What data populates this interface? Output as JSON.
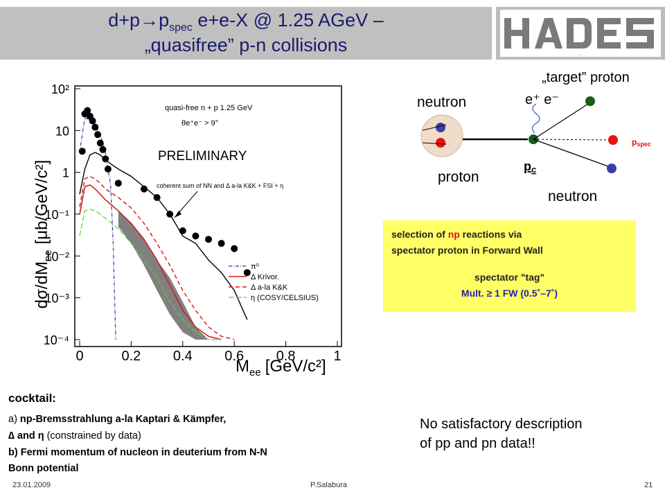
{
  "slide": {
    "title_line1": "d+p→p",
    "title_line1_sub": "spec",
    "title_line1_rest": " e+e-X  @ 1.25 AGeV  –",
    "title_line2": "„quasifree”  p-n collisions",
    "logo_text": "HADES"
  },
  "diagram": {
    "target_proton": "„target” proton",
    "neutron_top": "neutron",
    "ee": "e⁺ e⁻",
    "proton": "proton",
    "pc": "p",
    "pc_sub": "c",
    "pspec": "p",
    "pspec_sub": "spec",
    "neutron_bottom": "neutron"
  },
  "selection_box": {
    "line1_pre": "selection of ",
    "line1_np": "np",
    "line1_post": " reactions via",
    "line2": "spectator proton  in Forward Wall",
    "line3": "spectator \"tag\"",
    "line4": "Mult.  ≥ 1 FW (0.5˚–7˚)"
  },
  "cocktail": {
    "heading": "cocktail:",
    "a_prefix": "a) ",
    "a_text": "np-Bremsstrahlung a-la Kaptari & Kämpfer,",
    "delta_eta": "∆  and  η",
    "delta_eta_rest": " (constrained by data)",
    "b_text": "b) Fermi momentum of nucleon in deuterium from N-N",
    "b_text2": "Bonn potential"
  },
  "conclusion": {
    "line1": "No satisfactory description",
    "line2": "of pp and pn data!!"
  },
  "footer": {
    "date": "23.01.2009",
    "author": "P.Salabura",
    "page": "21"
  },
  "chart_data": {
    "type": "line",
    "xlabel": "M",
    "xlabel_sub": "ee",
    "xlabel_units": "[GeV/c²]",
    "ylabel": "dσ/dM",
    "ylabel_sub": "ee",
    "ylabel_units": "[μb/GeV/c²]",
    "xlim": [
      0,
      1
    ],
    "ylim_log10": [
      -4,
      2
    ],
    "y_scale": "log",
    "x_ticks": [
      "0",
      "0.2",
      "0.4",
      "0.6",
      "0.8",
      "1"
    ],
    "y_ticks": [
      "10⁻⁴",
      "10⁻³",
      "10⁻²",
      "10⁻¹",
      "1",
      "10",
      "10²"
    ],
    "annotation_title": "quasi-free n + p  1.25 GeV",
    "annotation_cut": "θe⁺e⁻ > 9°",
    "annotation_label": "PRELIMINARY",
    "annotation_sum": "coherent sum of NN and Δ a-la K&K + FSI + η",
    "legend": [
      "π⁰",
      "Δ Krivor.",
      "Δ a-la K&K",
      "η (COSY/CELSIUS)"
    ],
    "legend_placement": "bottom-right",
    "series": [
      {
        "name": "data",
        "x": [
          0.01,
          0.02,
          0.03,
          0.04,
          0.05,
          0.06,
          0.07,
          0.08,
          0.09,
          0.1,
          0.11,
          0.15,
          0.25,
          0.3,
          0.35,
          0.4,
          0.45,
          0.5,
          0.55,
          0.6,
          0.65
        ],
        "y": [
          3.2,
          25,
          30,
          22,
          17,
          12,
          8,
          5,
          3.5,
          2.1,
          1.2,
          0.55,
          0.4,
          0.25,
          0.1,
          0.04,
          0.03,
          0.025,
          0.02,
          0.015,
          0.004
        ]
      },
      {
        "name": "coherent sum",
        "x": [
          0.0,
          0.02,
          0.04,
          0.06,
          0.08,
          0.1,
          0.12,
          0.15,
          0.2,
          0.25,
          0.3,
          0.35,
          0.4,
          0.45,
          0.5,
          0.55,
          0.6,
          0.65
        ],
        "y": [
          0.3,
          1.2,
          2.6,
          3.0,
          2.6,
          2.0,
          1.6,
          1.2,
          0.8,
          0.45,
          0.25,
          0.1,
          0.03,
          0.02,
          0.008,
          0.004,
          0.0015,
          0.0003
        ]
      },
      {
        "name": "π⁰",
        "x": [
          0.0,
          0.02,
          0.05,
          0.08,
          0.1,
          0.12,
          0.13,
          0.14
        ],
        "y": [
          3.0,
          20,
          17,
          8,
          3,
          0.5,
          0.02,
          0.0001
        ]
      },
      {
        "name": "Δ Krivor.",
        "x": [
          0.0,
          0.02,
          0.04,
          0.06,
          0.08,
          0.1,
          0.15,
          0.2,
          0.25,
          0.3,
          0.35,
          0.4,
          0.45,
          0.5,
          0.55
        ],
        "y": [
          0.1,
          0.45,
          0.5,
          0.4,
          0.3,
          0.22,
          0.12,
          0.06,
          0.025,
          0.008,
          0.002,
          0.0005,
          0.0002,
          0.00012,
          0.0001
        ]
      },
      {
        "name": "Δ a-la K&K",
        "x": [
          0.0,
          0.02,
          0.04,
          0.06,
          0.08,
          0.1,
          0.15,
          0.2,
          0.25,
          0.3,
          0.35,
          0.4,
          0.45,
          0.5,
          0.55,
          0.6
        ],
        "y": [
          0.15,
          0.7,
          0.8,
          0.7,
          0.55,
          0.4,
          0.25,
          0.14,
          0.06,
          0.02,
          0.006,
          0.0015,
          0.0005,
          0.0002,
          0.00012,
          0.0001
        ]
      },
      {
        "name": "η (COSY/CELSIUS)",
        "x": [
          0.0,
          0.02,
          0.04,
          0.06,
          0.08,
          0.1,
          0.15,
          0.2,
          0.25,
          0.3,
          0.35,
          0.4,
          0.45,
          0.5,
          0.55
        ],
        "y": [
          0.03,
          0.12,
          0.13,
          0.12,
          0.1,
          0.08,
          0.045,
          0.02,
          0.008,
          0.003,
          0.0008,
          0.0003,
          0.00015,
          0.0001,
          0.0001
        ]
      }
    ],
    "band": {
      "name": "band",
      "x": [
        0.15,
        0.2,
        0.25,
        0.3,
        0.35,
        0.4,
        0.45,
        0.5
      ],
      "y_low": [
        0.05,
        0.02,
        0.006,
        0.0015,
        0.0004,
        0.00015,
        0.0001,
        0.0001
      ],
      "y_high": [
        0.12,
        0.06,
        0.025,
        0.008,
        0.003,
        0.0008,
        0.0002,
        0.0001
      ]
    },
    "colors": {
      "data": "#000000",
      "sum": "#000000",
      "pi0": "#3333aa",
      "krivor": "#cc2222",
      "kk": "#dd1111",
      "eta": "#66cc33",
      "band": "#808080"
    }
  }
}
